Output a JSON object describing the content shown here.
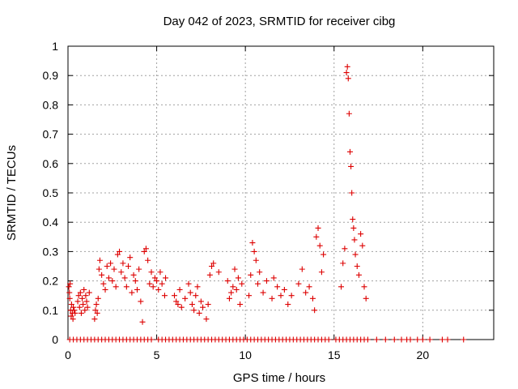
{
  "chart_data": {
    "type": "scatter",
    "title": "Day 042 of 2023, SRMTID for receiver cibg",
    "xlabel": "GPS time / hours",
    "ylabel": "SRMTID / TECUs",
    "xlim": [
      0,
      24
    ],
    "ylim": [
      0,
      1
    ],
    "grid": true,
    "marker": "plus",
    "color": "#dd0000",
    "x_ticks": [
      0,
      5,
      10,
      15,
      20
    ],
    "x_tick_labels": [
      "0",
      "5",
      "10",
      "15",
      "20"
    ],
    "y_ticks": [
      0,
      0.1,
      0.2,
      0.3,
      0.4,
      0.5,
      0.6,
      0.7,
      0.8,
      0.9,
      1
    ],
    "y_tick_labels": [
      "0",
      "0.1",
      "0.2",
      "0.3",
      "0.4",
      "0.5",
      "0.6",
      "0.7",
      "0.8",
      "0.9",
      "1"
    ],
    "series": [
      {
        "name": "SRMTID",
        "points": [
          [
            0.05,
            0.18
          ],
          [
            0.08,
            0.16
          ],
          [
            0.1,
            0.14
          ],
          [
            0.12,
            0.19
          ],
          [
            0.15,
            0.1
          ],
          [
            0.18,
            0.08
          ],
          [
            0.2,
            0.12
          ],
          [
            0.25,
            0.09
          ],
          [
            0.28,
            0.07
          ],
          [
            0.3,
            0.11
          ],
          [
            0.35,
            0.1
          ],
          [
            0.4,
            0.09
          ],
          [
            0.55,
            0.13
          ],
          [
            0.6,
            0.15
          ],
          [
            0.65,
            0.11
          ],
          [
            0.7,
            0.16
          ],
          [
            0.75,
            0.09
          ],
          [
            0.8,
            0.14
          ],
          [
            0.85,
            0.12
          ],
          [
            0.9,
            0.17
          ],
          [
            0.95,
            0.1
          ],
          [
            1.0,
            0.15
          ],
          [
            1.05,
            0.13
          ],
          [
            1.1,
            0.11
          ],
          [
            1.2,
            0.16
          ],
          [
            1.5,
            0.07
          ],
          [
            1.55,
            0.1
          ],
          [
            1.6,
            0.12
          ],
          [
            1.65,
            0.09
          ],
          [
            1.7,
            0.14
          ],
          [
            1.75,
            0.24
          ],
          [
            1.8,
            0.27
          ],
          [
            1.9,
            0.22
          ],
          [
            2.0,
            0.19
          ],
          [
            2.1,
            0.17
          ],
          [
            2.2,
            0.25
          ],
          [
            2.3,
            0.21
          ],
          [
            2.4,
            0.26
          ],
          [
            2.5,
            0.2
          ],
          [
            2.6,
            0.24
          ],
          [
            2.7,
            0.18
          ],
          [
            2.8,
            0.29
          ],
          [
            2.9,
            0.3
          ],
          [
            3.0,
            0.23
          ],
          [
            3.1,
            0.26
          ],
          [
            3.2,
            0.21
          ],
          [
            3.3,
            0.18
          ],
          [
            3.4,
            0.25
          ],
          [
            3.5,
            0.28
          ],
          [
            3.6,
            0.16
          ],
          [
            3.7,
            0.22
          ],
          [
            3.8,
            0.2
          ],
          [
            3.9,
            0.17
          ],
          [
            4.0,
            0.24
          ],
          [
            4.1,
            0.13
          ],
          [
            4.2,
            0.06
          ],
          [
            4.3,
            0.3
          ],
          [
            4.4,
            0.31
          ],
          [
            4.5,
            0.27
          ],
          [
            4.6,
            0.19
          ],
          [
            4.7,
            0.23
          ],
          [
            4.8,
            0.18
          ],
          [
            4.9,
            0.21
          ],
          [
            5.0,
            0.2
          ],
          [
            5.1,
            0.17
          ],
          [
            5.2,
            0.23
          ],
          [
            5.3,
            0.19
          ],
          [
            5.45,
            0.15
          ],
          [
            5.5,
            0.21
          ],
          [
            6.0,
            0.15
          ],
          [
            6.1,
            0.13
          ],
          [
            6.2,
            0.12
          ],
          [
            6.3,
            0.17
          ],
          [
            6.4,
            0.11
          ],
          [
            6.6,
            0.14
          ],
          [
            6.8,
            0.19
          ],
          [
            6.9,
            0.16
          ],
          [
            7.0,
            0.12
          ],
          [
            7.1,
            0.1
          ],
          [
            7.2,
            0.15
          ],
          [
            7.3,
            0.18
          ],
          [
            7.4,
            0.09
          ],
          [
            7.5,
            0.13
          ],
          [
            7.6,
            0.11
          ],
          [
            7.8,
            0.07
          ],
          [
            7.9,
            0.12
          ],
          [
            8.0,
            0.22
          ],
          [
            8.1,
            0.25
          ],
          [
            8.2,
            0.26
          ],
          [
            8.5,
            0.23
          ],
          [
            9.0,
            0.2
          ],
          [
            9.1,
            0.14
          ],
          [
            9.2,
            0.16
          ],
          [
            9.3,
            0.18
          ],
          [
            9.4,
            0.24
          ],
          [
            9.5,
            0.17
          ],
          [
            9.6,
            0.21
          ],
          [
            9.7,
            0.12
          ],
          [
            9.8,
            0.19
          ],
          [
            10.2,
            0.15
          ],
          [
            10.3,
            0.22
          ],
          [
            10.4,
            0.33
          ],
          [
            10.5,
            0.3
          ],
          [
            10.6,
            0.27
          ],
          [
            10.7,
            0.19
          ],
          [
            10.8,
            0.23
          ],
          [
            11.0,
            0.16
          ],
          [
            11.2,
            0.2
          ],
          [
            11.5,
            0.14
          ],
          [
            11.6,
            0.21
          ],
          [
            11.8,
            0.18
          ],
          [
            12.0,
            0.15
          ],
          [
            12.2,
            0.17
          ],
          [
            12.4,
            0.12
          ],
          [
            12.6,
            0.15
          ],
          [
            13.0,
            0.19
          ],
          [
            13.2,
            0.24
          ],
          [
            13.4,
            0.16
          ],
          [
            13.6,
            0.18
          ],
          [
            13.8,
            0.14
          ],
          [
            13.9,
            0.1
          ],
          [
            14.0,
            0.35
          ],
          [
            14.1,
            0.38
          ],
          [
            14.2,
            0.32
          ],
          [
            14.3,
            0.23
          ],
          [
            14.4,
            0.29
          ],
          [
            15.4,
            0.18
          ],
          [
            15.5,
            0.26
          ],
          [
            15.6,
            0.31
          ],
          [
            15.7,
            0.91
          ],
          [
            15.75,
            0.93
          ],
          [
            15.8,
            0.89
          ],
          [
            15.85,
            0.77
          ],
          [
            15.9,
            0.64
          ],
          [
            15.95,
            0.59
          ],
          [
            16.0,
            0.5
          ],
          [
            16.05,
            0.41
          ],
          [
            16.1,
            0.38
          ],
          [
            16.15,
            0.34
          ],
          [
            16.2,
            0.29
          ],
          [
            16.3,
            0.25
          ],
          [
            16.4,
            0.22
          ],
          [
            16.5,
            0.36
          ],
          [
            16.6,
            0.32
          ],
          [
            16.7,
            0.18
          ],
          [
            16.8,
            0.14
          ]
        ]
      }
    ],
    "zero_points_x": [
      0.1,
      0.3,
      0.5,
      0.7,
      0.9,
      1.1,
      1.3,
      1.5,
      1.7,
      1.9,
      2.1,
      2.3,
      2.5,
      2.7,
      2.9,
      3.1,
      3.3,
      3.5,
      3.7,
      3.9,
      4.1,
      4.3,
      4.5,
      4.7,
      5.1,
      5.3,
      5.5,
      5.7,
      5.9,
      6.1,
      6.3,
      6.5,
      6.7,
      6.9,
      7.1,
      7.3,
      7.5,
      7.7,
      7.9,
      8.1,
      8.3,
      8.5,
      8.7,
      8.9,
      9.1,
      9.3,
      9.5,
      9.7,
      9.9,
      10.1,
      10.3,
      10.5,
      10.7,
      10.9,
      11.1,
      11.3,
      11.5,
      11.7,
      11.9,
      12.1,
      12.3,
      12.5,
      12.7,
      12.9,
      13.1,
      13.3,
      13.5,
      13.7,
      13.9,
      14.1,
      14.3,
      14.5,
      14.7,
      15.1,
      15.3,
      15.5,
      15.7,
      15.9,
      16.1,
      16.3,
      16.5,
      16.7,
      16.9,
      17.4,
      17.9,
      18.4,
      18.8,
      19.1,
      19.3,
      19.7,
      20.0,
      20.4,
      21.1,
      21.4,
      22.3
    ]
  }
}
